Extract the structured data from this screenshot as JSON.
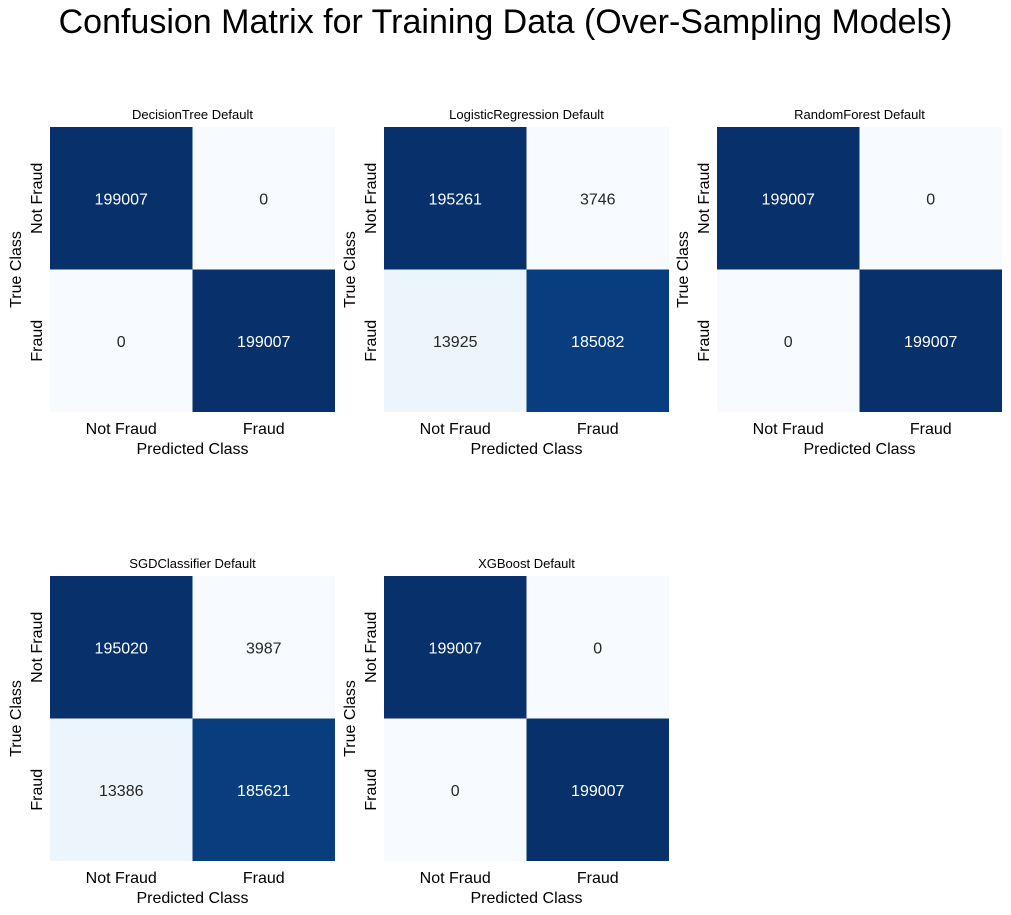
{
  "page": {
    "title": "Confusion Matrix for Training Data (Over-Sampling Models)"
  },
  "chart_data": [
    {
      "type": "heatmap",
      "title": "DecisionTree Default",
      "xlabel": "Predicted Class",
      "ylabel": "True Class",
      "x_categories": [
        "Not Fraud",
        "Fraud"
      ],
      "y_categories": [
        "Not Fraud",
        "Fraud"
      ],
      "values": [
        [
          199007,
          0
        ],
        [
          0,
          199007
        ]
      ],
      "colormap": "Blues",
      "colorbar": false,
      "annotated": true
    },
    {
      "type": "heatmap",
      "title": "LogisticRegression Default",
      "xlabel": "Predicted Class",
      "ylabel": "True Class",
      "x_categories": [
        "Not Fraud",
        "Fraud"
      ],
      "y_categories": [
        "Not Fraud",
        "Fraud"
      ],
      "values": [
        [
          195261,
          3746
        ],
        [
          13925,
          185082
        ]
      ],
      "colormap": "Blues",
      "colorbar": false,
      "annotated": true
    },
    {
      "type": "heatmap",
      "title": "RandomForest Default",
      "xlabel": "Predicted Class",
      "ylabel": "True Class",
      "x_categories": [
        "Not Fraud",
        "Fraud"
      ],
      "y_categories": [
        "Not Fraud",
        "Fraud"
      ],
      "values": [
        [
          199007,
          0
        ],
        [
          0,
          199007
        ]
      ],
      "colormap": "Blues",
      "colorbar": false,
      "annotated": true
    },
    {
      "type": "heatmap",
      "title": "SGDClassifier Default",
      "xlabel": "Predicted Class",
      "ylabel": "True Class",
      "x_categories": [
        "Not Fraud",
        "Fraud"
      ],
      "y_categories": [
        "Not Fraud",
        "Fraud"
      ],
      "values": [
        [
          195020,
          3987
        ],
        [
          13386,
          185621
        ]
      ],
      "colormap": "Blues",
      "colorbar": false,
      "annotated": true
    },
    {
      "type": "heatmap",
      "title": "XGBoost Default",
      "xlabel": "Predicted Class",
      "ylabel": "True Class",
      "x_categories": [
        "Not Fraud",
        "Fraud"
      ],
      "y_categories": [
        "Not Fraud",
        "Fraud"
      ],
      "values": [
        [
          199007,
          0
        ],
        [
          0,
          199007
        ]
      ],
      "colormap": "Blues",
      "colorbar": false,
      "annotated": true
    }
  ]
}
